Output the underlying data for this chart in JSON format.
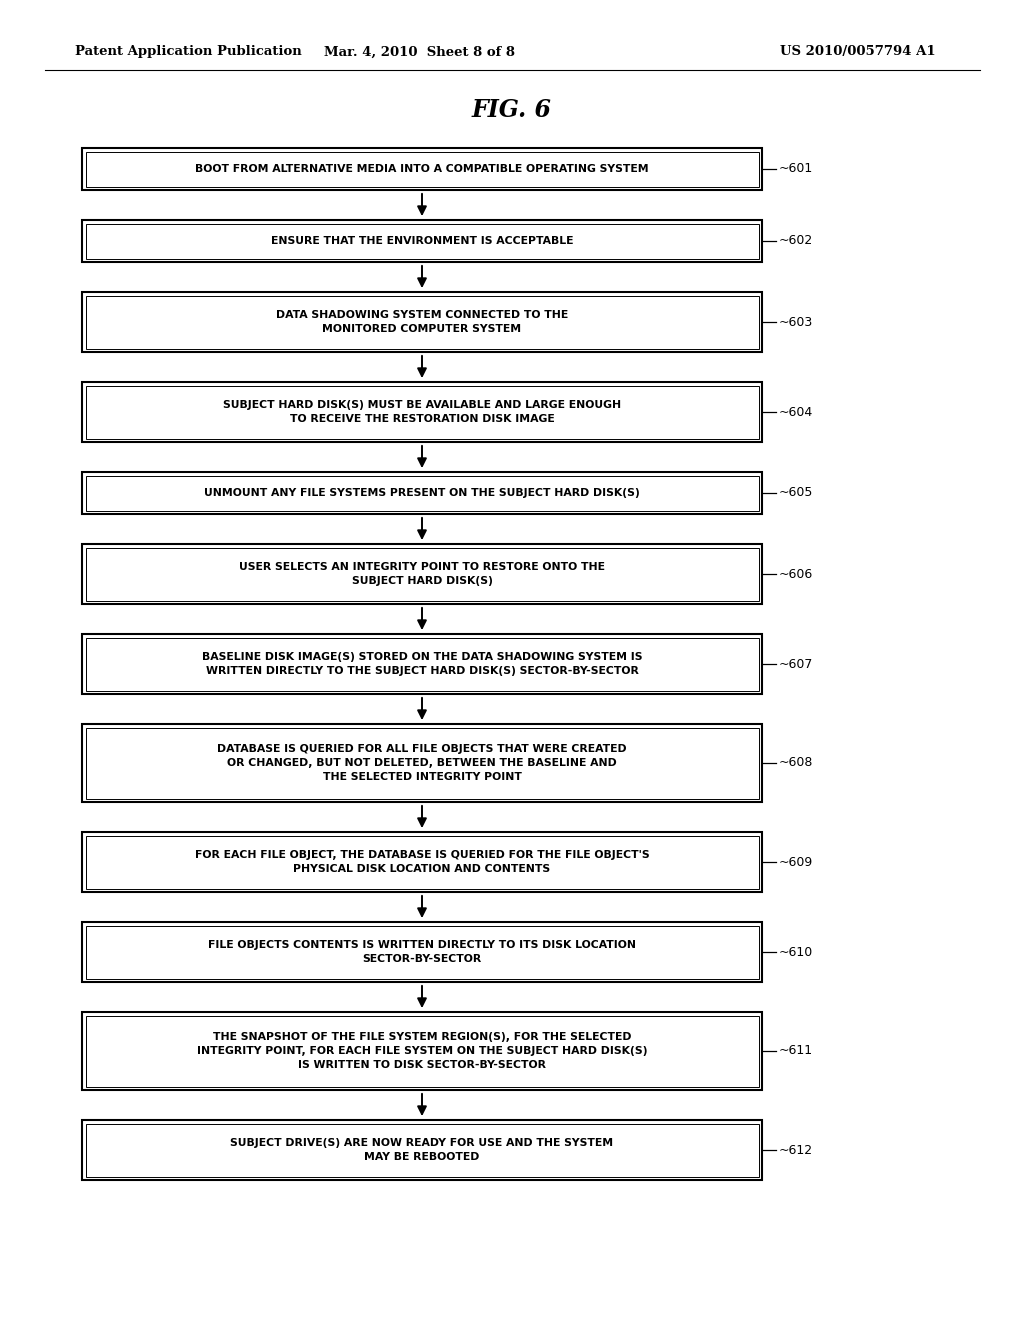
{
  "title": "FIG. 6",
  "header_left": "Patent Application Publication",
  "header_mid": "Mar. 4, 2010  Sheet 8 of 8",
  "header_right": "US 2010/0057794 A1",
  "background_color": "#ffffff",
  "boxes": [
    {
      "id": "601",
      "label": "BOOT FROM ALTERNATIVE MEDIA INTO A COMPATIBLE OPERATING SYSTEM",
      "num_lines": 1
    },
    {
      "id": "602",
      "label": "ENSURE THAT THE ENVIRONMENT IS ACCEPTABLE",
      "num_lines": 1
    },
    {
      "id": "603",
      "label": "DATA SHADOWING SYSTEM CONNECTED TO THE\nMONITORED COMPUTER SYSTEM",
      "num_lines": 2
    },
    {
      "id": "604",
      "label": "SUBJECT HARD DISK(S) MUST BE AVAILABLE AND LARGE ENOUGH\nTO RECEIVE THE RESTORATION DISK IMAGE",
      "num_lines": 2
    },
    {
      "id": "605",
      "label": "UNMOUNT ANY FILE SYSTEMS PRESENT ON THE SUBJECT HARD DISK(S)",
      "num_lines": 1
    },
    {
      "id": "606",
      "label": "USER SELECTS AN INTEGRITY POINT TO RESTORE ONTO THE\nSUBJECT HARD DISK(S)",
      "num_lines": 2
    },
    {
      "id": "607",
      "label": "BASELINE DISK IMAGE(S) STORED ON THE DATA SHADOWING SYSTEM IS\nWRITTEN DIRECTLY TO THE SUBJECT HARD DISK(S) SECTOR-BY-SECTOR",
      "num_lines": 2
    },
    {
      "id": "608",
      "label": "DATABASE IS QUERIED FOR ALL FILE OBJECTS THAT WERE CREATED\nOR CHANGED, BUT NOT DELETED, BETWEEN THE BASELINE AND\nTHE SELECTED INTEGRITY POINT",
      "num_lines": 3
    },
    {
      "id": "609",
      "label": "FOR EACH FILE OBJECT, THE DATABASE IS QUERIED FOR THE FILE OBJECT'S\nPHYSICAL DISK LOCATION AND CONTENTS",
      "num_lines": 2
    },
    {
      "id": "610",
      "label": "FILE OBJECTS CONTENTS IS WRITTEN DIRECTLY TO ITS DISK LOCATION\nSECTOR-BY-SECTOR",
      "num_lines": 2
    },
    {
      "id": "611",
      "label": "THE SNAPSHOT OF THE FILE SYSTEM REGION(S), FOR THE SELECTED\nINTEGRITY POINT, FOR EACH FILE SYSTEM ON THE SUBJECT HARD DISK(S)\nIS WRITTEN TO DISK SECTOR-BY-SECTOR",
      "num_lines": 3
    },
    {
      "id": "612",
      "label": "SUBJECT DRIVE(S) ARE NOW READY FOR USE AND THE SYSTEM\nMAY BE REBOOTED",
      "num_lines": 2
    }
  ]
}
